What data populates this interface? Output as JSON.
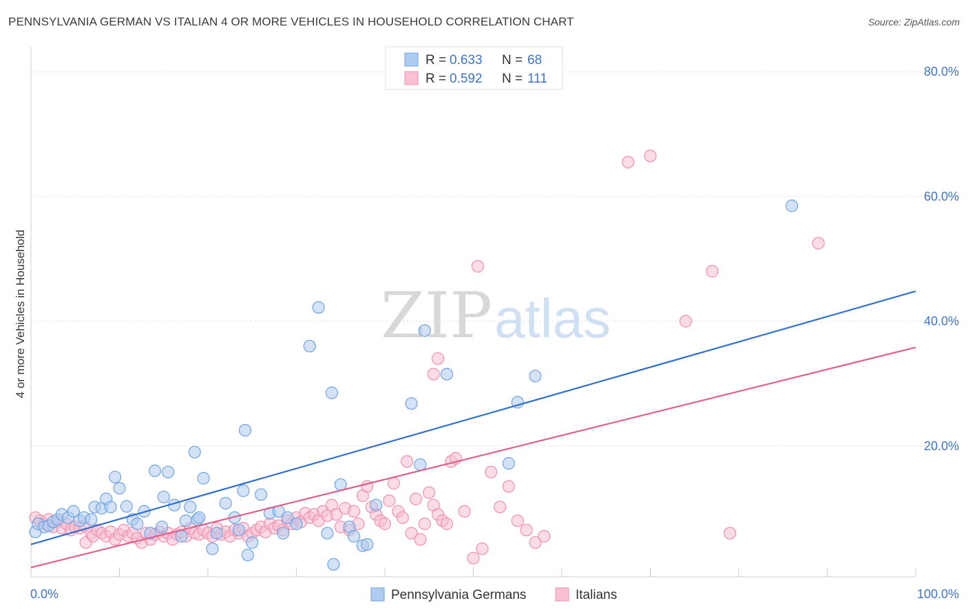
{
  "title": "PENNSYLVANIA GERMAN VS ITALIAN 4 OR MORE VEHICLES IN HOUSEHOLD CORRELATION CHART",
  "source": "Source: ZipAtlas.com",
  "watermark": {
    "zip": "ZIP",
    "atlas": "atlas"
  },
  "legend_stats": [
    {
      "r_label": "R =",
      "r_value": "0.633",
      "n_label": "N =",
      "n_value": "68",
      "color": "#6fa3e0"
    },
    {
      "r_label": "R =",
      "r_value": "0.592",
      "n_label": "N =",
      "n_value": "111",
      "color": "#f08fb0"
    }
  ],
  "chart_data": {
    "type": "scatter",
    "xlabel": "",
    "ylabel": "4 or more Vehicles in Household",
    "xlim": [
      0,
      100
    ],
    "ylim": [
      -1,
      84
    ],
    "x_tick_labels": [
      "0.0%",
      "100.0%"
    ],
    "y_ticks": [
      20,
      40,
      60,
      80
    ],
    "y_tick_labels": [
      "20.0%",
      "40.0%",
      "60.0%",
      "80.0%"
    ],
    "grid": true,
    "legend_position": "bottom",
    "colors": {
      "blue": "#6fa3e0",
      "blue_line": "#2f6fcc",
      "pink": "#f08fb0",
      "pink_line": "#e0608a",
      "tick_text": "#3d74c9"
    },
    "series": [
      {
        "name": "Pennsylvania Germans",
        "fill": "#aecbf0",
        "stroke": "#6fa3e0",
        "trend": {
          "x": [
            0,
            100
          ],
          "y": [
            4.2,
            44.8
          ]
        },
        "points": [
          [
            0.5,
            6.2
          ],
          [
            0.8,
            7.5
          ],
          [
            1.5,
            7.0
          ],
          [
            2.0,
            7.2
          ],
          [
            2.5,
            7.8
          ],
          [
            3.0,
            8.2
          ],
          [
            3.5,
            9.0
          ],
          [
            4.2,
            8.5
          ],
          [
            4.8,
            9.5
          ],
          [
            5.5,
            8.0
          ],
          [
            6.0,
            8.5
          ],
          [
            6.8,
            8.2
          ],
          [
            7.2,
            10.2
          ],
          [
            8.0,
            10.0
          ],
          [
            8.5,
            11.5
          ],
          [
            9.0,
            10.2
          ],
          [
            9.5,
            15.0
          ],
          [
            10.0,
            13.2
          ],
          [
            10.8,
            10.3
          ],
          [
            11.5,
            8.2
          ],
          [
            12.0,
            7.5
          ],
          [
            12.8,
            9.5
          ],
          [
            13.5,
            6.0
          ],
          [
            14.0,
            16.0
          ],
          [
            14.8,
            7.0
          ],
          [
            15.5,
            15.8
          ],
          [
            15.0,
            11.8
          ],
          [
            16.2,
            10.5
          ],
          [
            17.0,
            5.5
          ],
          [
            17.5,
            8.0
          ],
          [
            18.0,
            10.2
          ],
          [
            18.5,
            19.0
          ],
          [
            18.8,
            8.2
          ],
          [
            19.0,
            8.5
          ],
          [
            19.5,
            14.8
          ],
          [
            20.5,
            3.5
          ],
          [
            21.0,
            6.0
          ],
          [
            22.0,
            10.8
          ],
          [
            23.0,
            8.5
          ],
          [
            23.5,
            6.5
          ],
          [
            24.0,
            12.8
          ],
          [
            24.5,
            2.5
          ],
          [
            24.2,
            22.5
          ],
          [
            25.0,
            4.5
          ],
          [
            26.0,
            12.2
          ],
          [
            27.0,
            9.2
          ],
          [
            28.0,
            9.5
          ],
          [
            28.5,
            6.0
          ],
          [
            29.0,
            8.5
          ],
          [
            30.0,
            7.5
          ],
          [
            31.5,
            36.0
          ],
          [
            32.5,
            42.2
          ],
          [
            33.5,
            6.0
          ],
          [
            34.0,
            28.5
          ],
          [
            34.2,
            1.0
          ],
          [
            35.0,
            13.8
          ],
          [
            36.0,
            7.0
          ],
          [
            36.5,
            5.5
          ],
          [
            37.5,
            4.0
          ],
          [
            38.0,
            4.2
          ],
          [
            39.0,
            10.5
          ],
          [
            43.0,
            26.8
          ],
          [
            44.0,
            17.0
          ],
          [
            44.5,
            38.5
          ],
          [
            47.0,
            31.5
          ],
          [
            54.0,
            17.2
          ],
          [
            55.0,
            27.0
          ],
          [
            57.0,
            31.2
          ],
          [
            86.0,
            58.5
          ]
        ]
      },
      {
        "name": "Italians",
        "fill": "#f8c0d2",
        "stroke": "#f08fb0",
        "trend": {
          "x": [
            0,
            100
          ],
          "y": [
            0.5,
            35.8
          ]
        },
        "points": [
          [
            0.5,
            8.5
          ],
          [
            1.0,
            8.0
          ],
          [
            1.5,
            7.5
          ],
          [
            2.0,
            8.2
          ],
          [
            2.5,
            7.0
          ],
          [
            3.0,
            7.8
          ],
          [
            3.5,
            6.8
          ],
          [
            4.0,
            7.5
          ],
          [
            4.5,
            6.5
          ],
          [
            5.0,
            7.0
          ],
          [
            5.5,
            6.8
          ],
          [
            6.0,
            7.2
          ],
          [
            6.2,
            4.5
          ],
          [
            6.8,
            6.0
          ],
          [
            7.0,
            5.5
          ],
          [
            7.5,
            6.5
          ],
          [
            8.0,
            6.0
          ],
          [
            8.5,
            5.5
          ],
          [
            9.0,
            6.2
          ],
          [
            9.5,
            5.0
          ],
          [
            10.0,
            5.8
          ],
          [
            10.5,
            6.5
          ],
          [
            11.0,
            5.5
          ],
          [
            11.5,
            6.0
          ],
          [
            12.0,
            5.2
          ],
          [
            12.5,
            4.5
          ],
          [
            13.0,
            6.0
          ],
          [
            13.5,
            5.0
          ],
          [
            14.0,
            5.8
          ],
          [
            14.5,
            6.2
          ],
          [
            15.0,
            5.5
          ],
          [
            15.5,
            6.0
          ],
          [
            16.0,
            5.0
          ],
          [
            16.5,
            5.8
          ],
          [
            17.0,
            6.2
          ],
          [
            17.5,
            5.5
          ],
          [
            18.0,
            6.8
          ],
          [
            18.5,
            6.0
          ],
          [
            19.0,
            5.8
          ],
          [
            19.5,
            6.5
          ],
          [
            20.0,
            6.0
          ],
          [
            20.5,
            5.5
          ],
          [
            21.0,
            6.8
          ],
          [
            21.5,
            5.8
          ],
          [
            22.0,
            6.2
          ],
          [
            22.5,
            5.5
          ],
          [
            23.0,
            6.5
          ],
          [
            23.5,
            6.0
          ],
          [
            24.0,
            6.8
          ],
          [
            24.5,
            5.5
          ],
          [
            25.0,
            6.0
          ],
          [
            25.5,
            6.5
          ],
          [
            26.0,
            7.0
          ],
          [
            26.5,
            6.2
          ],
          [
            27.0,
            7.5
          ],
          [
            27.5,
            6.8
          ],
          [
            28.0,
            7.2
          ],
          [
            28.5,
            6.5
          ],
          [
            29.0,
            8.0
          ],
          [
            29.5,
            7.5
          ],
          [
            30.0,
            8.5
          ],
          [
            30.5,
            7.8
          ],
          [
            31.0,
            9.2
          ],
          [
            31.5,
            8.5
          ],
          [
            32.0,
            9.0
          ],
          [
            32.5,
            8.0
          ],
          [
            33.0,
            9.5
          ],
          [
            33.5,
            8.8
          ],
          [
            34.0,
            10.5
          ],
          [
            34.5,
            9.0
          ],
          [
            35.0,
            7.0
          ],
          [
            35.5,
            10.0
          ],
          [
            36.0,
            6.5
          ],
          [
            36.5,
            9.5
          ],
          [
            37.0,
            7.5
          ],
          [
            37.5,
            12.0
          ],
          [
            38.0,
            13.5
          ],
          [
            38.5,
            10.2
          ],
          [
            39.0,
            9.0
          ],
          [
            39.5,
            8.0
          ],
          [
            40.0,
            7.5
          ],
          [
            40.5,
            11.2
          ],
          [
            41.0,
            14.0
          ],
          [
            41.5,
            9.5
          ],
          [
            42.0,
            8.5
          ],
          [
            42.5,
            17.5
          ],
          [
            43.0,
            6.0
          ],
          [
            43.5,
            11.5
          ],
          [
            44.0,
            5.0
          ],
          [
            44.5,
            7.5
          ],
          [
            45.0,
            12.5
          ],
          [
            45.5,
            10.5
          ],
          [
            46.0,
            9.0
          ],
          [
            46.5,
            8.0
          ],
          [
            47.0,
            7.5
          ],
          [
            47.5,
            17.5
          ],
          [
            48.0,
            18.0
          ],
          [
            49.0,
            9.5
          ],
          [
            50.0,
            2.0
          ],
          [
            51.0,
            3.5
          ],
          [
            52.0,
            15.8
          ],
          [
            53.0,
            10.2
          ],
          [
            54.0,
            13.5
          ],
          [
            55.0,
            8.0
          ],
          [
            56.0,
            6.5
          ],
          [
            57.0,
            4.5
          ],
          [
            58.0,
            5.5
          ],
          [
            45.5,
            31.5
          ],
          [
            46.0,
            34.0
          ],
          [
            50.5,
            48.8
          ],
          [
            67.5,
            65.5
          ],
          [
            70.0,
            66.5
          ],
          [
            74.0,
            40.0
          ],
          [
            77.0,
            48.0
          ],
          [
            89.0,
            52.5
          ],
          [
            79.0,
            6.0
          ]
        ]
      }
    ]
  }
}
